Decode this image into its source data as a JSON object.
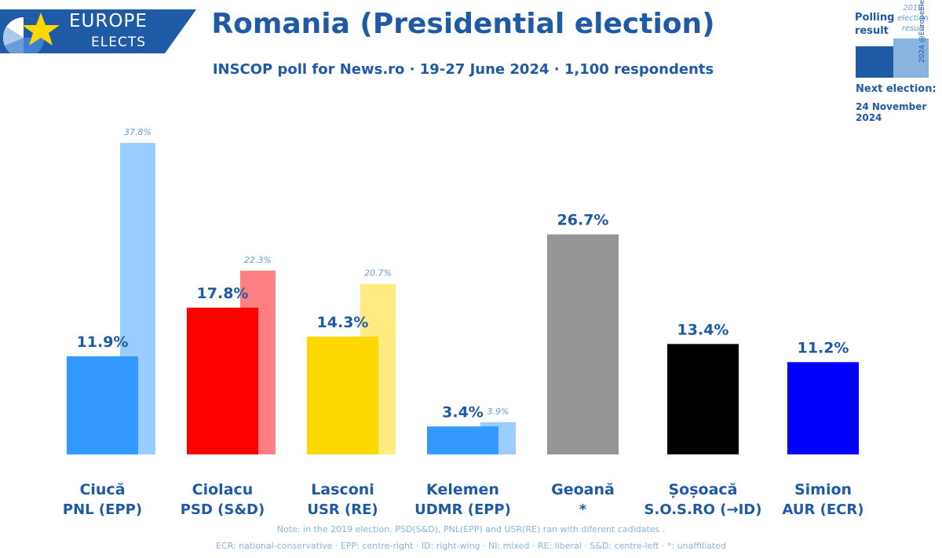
{
  "logo": {
    "line1": "EUROPE",
    "line2": "ELECTS"
  },
  "header": {
    "title": "Romania (Presidential election)",
    "subtitle": "INSCOP poll for News.ro · 19-27 June 2024 · 1,100 respondents"
  },
  "legend": {
    "poll_label": "Polling result",
    "prev_label": "2019 election result",
    "copyright": "2024 @EuropeElects",
    "next_election_label": "Next election:",
    "next_election_date": "24 November 2024",
    "poll_color": "#1f5aa6",
    "prev_color": "#8ab4e0"
  },
  "chart_data": {
    "type": "bar",
    "title": "Romania (Presidential election)",
    "ylim": [
      0,
      40
    ],
    "categories": [
      "Ciucă",
      "Ciolacu",
      "Lasconi",
      "Kelemen",
      "Geoană",
      "Șoșoacă",
      "Simion"
    ],
    "parties": [
      "PNL (EPP)",
      "PSD (S&D)",
      "USR (RE)",
      "UDMR (EPP)",
      "*",
      "S.O.S.RO (→ID)",
      "AUR (ECR)"
    ],
    "series": [
      {
        "name": "Polling result",
        "values": [
          11.9,
          17.8,
          14.3,
          3.4,
          26.7,
          13.4,
          11.2
        ],
        "labels": [
          "11.9%",
          "17.8%",
          "14.3%",
          "3.4%",
          "26.7%",
          "13.4%",
          "11.2%"
        ],
        "colors": [
          "#3399ff",
          "#ff0000",
          "#ffd700",
          "#3399ff",
          "#969696",
          "#000000",
          "#0000ff"
        ]
      },
      {
        "name": "2019 election result",
        "values": [
          37.8,
          22.3,
          20.7,
          3.9,
          null,
          null,
          null
        ],
        "labels": [
          "37.8%",
          "22.3%",
          "20.7%",
          "3.9%",
          "",
          "",
          ""
        ],
        "colors": [
          "#99ccff",
          "#ff8080",
          "#ffeb80",
          "#99ccff",
          null,
          null,
          null
        ]
      }
    ]
  },
  "notes": {
    "line1": "Note: in the 2019 election, PSD(S&D), PNL(EPP) and USR(RE) ran with diferent cadidates .",
    "line2": "ECR: national-conservative · EPP: centre-right · ID: right-wing · NI: mixed · RE: liberal · S&D: centre-left · *: unaffiliated"
  }
}
